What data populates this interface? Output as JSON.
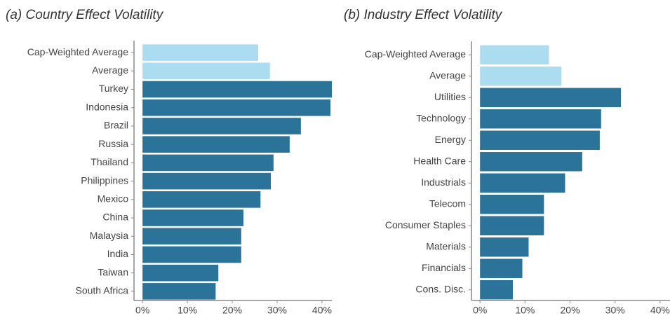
{
  "chart_data": [
    {
      "type": "barh",
      "title": "(a) Country Effect Volatility",
      "categories": [
        "Cap-Weighted Average",
        "Average",
        "Turkey",
        "Indonesia",
        "Brazil",
        "Russia",
        "Thailand",
        "Philippines",
        "Mexico",
        "China",
        "Malaysia",
        "India",
        "Taiwan",
        "South Africa"
      ],
      "values": [
        25.8,
        28.4,
        42.2,
        41.9,
        35.3,
        32.8,
        29.2,
        28.6,
        26.3,
        22.5,
        22.0,
        22.0,
        16.9,
        16.3
      ],
      "colors": [
        "#acdcf0",
        "#acdcf0",
        "#2c7399",
        "#2c7399",
        "#2c7399",
        "#2c7399",
        "#2c7399",
        "#2c7399",
        "#2c7399",
        "#2c7399",
        "#2c7399",
        "#2c7399",
        "#2c7399",
        "#2c7399"
      ],
      "xlim": [
        -1.9,
        42.2
      ],
      "xticks": [
        {
          "value": 0,
          "label": "0%"
        },
        {
          "value": 10,
          "label": "10%"
        },
        {
          "value": 20,
          "label": "20%"
        },
        {
          "value": 30,
          "label": "30%"
        },
        {
          "value": 40,
          "label": "40%"
        }
      ]
    },
    {
      "type": "barh",
      "title": "(b) Industry Effect Volatility",
      "categories": [
        "Cap-Weighted Average",
        "Average",
        "Utilities",
        "Technology",
        "Energy",
        "Health Care",
        "Industrials",
        "Telecom",
        "Consumer Staples",
        "Materials",
        "Financials",
        "Cons. Disc."
      ],
      "values": [
        15.3,
        18.1,
        31.3,
        26.9,
        26.6,
        22.7,
        18.9,
        14.2,
        14.2,
        10.8,
        9.4,
        7.3
      ],
      "colors": [
        "#acdcf0",
        "#acdcf0",
        "#2c7399",
        "#2c7399",
        "#2c7399",
        "#2c7399",
        "#2c7399",
        "#2c7399",
        "#2c7399",
        "#2c7399",
        "#2c7399",
        "#2c7399"
      ],
      "xlim": [
        -1.9,
        42.2
      ],
      "xticks": [
        {
          "value": 0,
          "label": "0%"
        },
        {
          "value": 10,
          "label": "10%"
        },
        {
          "value": 20,
          "label": "20%"
        },
        {
          "value": 30,
          "label": "30%"
        },
        {
          "value": 40,
          "label": "40%"
        }
      ]
    }
  ]
}
